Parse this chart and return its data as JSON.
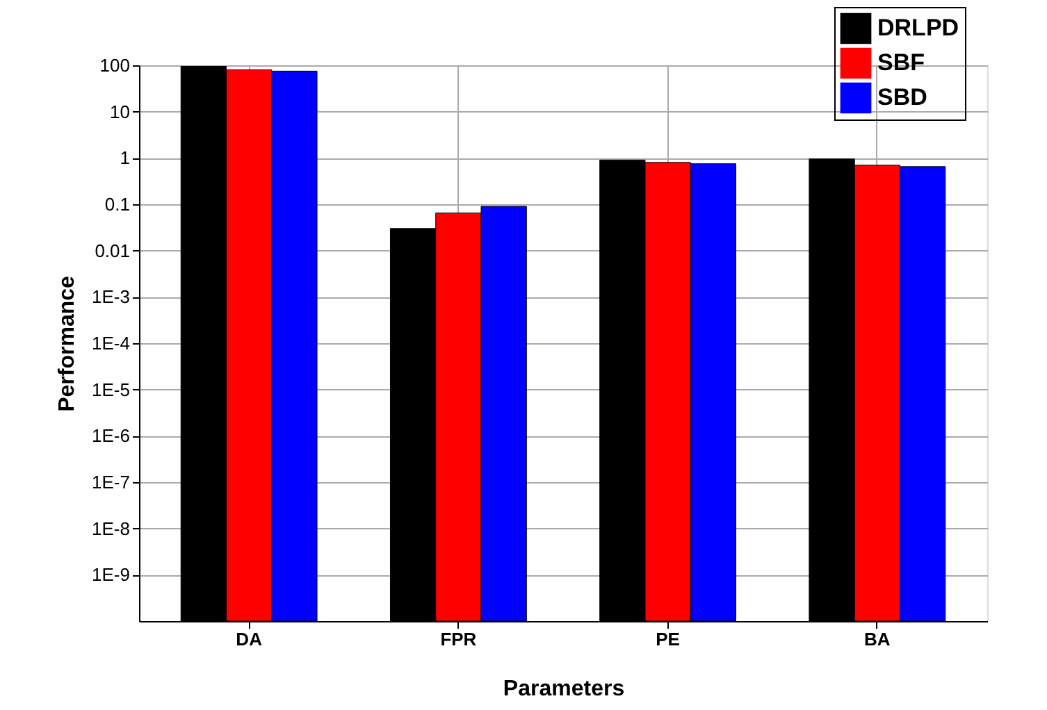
{
  "chart_data": {
    "type": "bar",
    "xlabel": "Parameters",
    "ylabel": "Performance",
    "log": true,
    "grid": true,
    "legend": "top right",
    "categories": [
      "DA",
      "FPR",
      "PE",
      "BA"
    ],
    "series": [
      {
        "name": "DRLPD",
        "color": "#000000",
        "values": [
          95,
          0.03,
          0.9,
          0.95
        ]
      },
      {
        "name": "SBF",
        "color": "#ff0000",
        "values": [
          80,
          0.065,
          0.8,
          0.7
        ]
      },
      {
        "name": "SBD",
        "color": "#0000ff",
        "values": [
          75,
          0.09,
          0.75,
          0.65
        ]
      }
    ],
    "ylim": [
      1e-10,
      100
    ],
    "yticks": [
      100,
      10,
      1,
      0.1,
      0.01,
      {
        "value": 0.001,
        "label": "1E-3"
      },
      {
        "value": 0.0001,
        "label": "1E-4"
      },
      {
        "value": 1e-05,
        "label": "1E-5"
      },
      {
        "value": 1e-06,
        "label": "1E-6"
      },
      {
        "value": 1e-07,
        "label": "1E-7"
      },
      {
        "value": 1e-08,
        "label": "1E-8"
      },
      {
        "value": 1e-09,
        "label": "1E-9"
      }
    ]
  }
}
